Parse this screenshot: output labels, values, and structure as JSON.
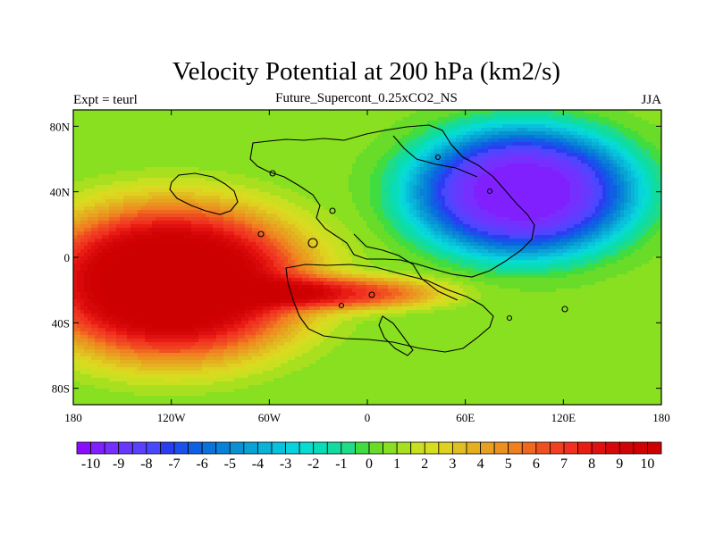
{
  "chart_data": {
    "type": "heatmap",
    "title": "Velocity Potential at 200 hPa (km2/s)",
    "subtitle": "Future_Supercont_0.25xCO2_NS",
    "left_label": "Expt = teurl",
    "right_label": "JJA",
    "xlim": [
      -180,
      180
    ],
    "ylim": [
      -90,
      90
    ],
    "x_ticks": [
      {
        "value": -180,
        "label": "180"
      },
      {
        "value": -120,
        "label": "120W"
      },
      {
        "value": -60,
        "label": "60W"
      },
      {
        "value": 0,
        "label": "0"
      },
      {
        "value": 60,
        "label": "60E"
      },
      {
        "value": 120,
        "label": "120E"
      },
      {
        "value": 180,
        "label": "180"
      }
    ],
    "y_ticks": [
      {
        "value": 80,
        "label": "80N"
      },
      {
        "value": 40,
        "label": "40N"
      },
      {
        "value": 0,
        "label": "0"
      },
      {
        "value": -40,
        "label": "40S"
      },
      {
        "value": -80,
        "label": "80S"
      }
    ],
    "colorbar": {
      "min": -10.5,
      "max": 10.5,
      "step": 0.5,
      "tick_labels": [
        "-10",
        "-9",
        "-8",
        "-7",
        "-6",
        "-5",
        "-4",
        "-3",
        "-2",
        "-1",
        "0",
        "1",
        "2",
        "3",
        "4",
        "5",
        "6",
        "7",
        "8",
        "9",
        "10"
      ],
      "colors": [
        "#8a0dff",
        "#8020ff",
        "#7530ff",
        "#6838ff",
        "#5a40ff",
        "#4a48ff",
        "#2c3cf0",
        "#1a50ec",
        "#1060e4",
        "#0a72dc",
        "#0882d8",
        "#0892d4",
        "#08a2d4",
        "#08b2d8",
        "#08c2dc",
        "#08d2dc",
        "#08dcd0",
        "#08dcb8",
        "#10dca0",
        "#20dc88",
        "#40dc40",
        "#68dc28",
        "#88e020",
        "#a8e020",
        "#c8e020",
        "#d8dc20",
        "#e0d020",
        "#e0c020",
        "#e4b020",
        "#e8a020",
        "#ec9020",
        "#f08020",
        "#f06820",
        "#f05020",
        "#f04020",
        "#f03020",
        "#e81c10",
        "#e01010",
        "#d80808",
        "#d00404",
        "#d00000",
        "#cc0000"
      ]
    },
    "field_centers": [
      {
        "name": "positive-max",
        "lon": -120,
        "lat": -15,
        "value": 10.6
      },
      {
        "name": "negative-min",
        "lon": 95,
        "lat": 40,
        "value": -10.6
      }
    ]
  }
}
